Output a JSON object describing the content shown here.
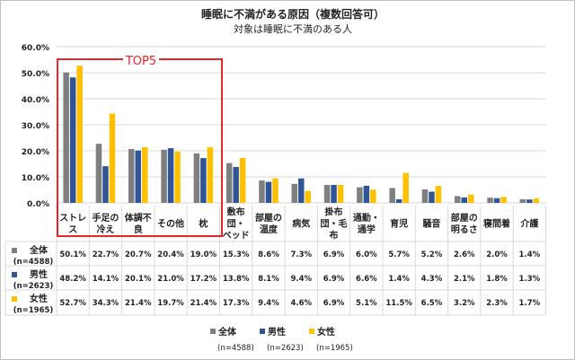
{
  "chart_data": {
    "type": "bar",
    "title": "睡眠に不満がある原因（複数回答可）",
    "subtitle": "対象は睡眠に不満のある人",
    "annotation": "TOP5",
    "ylim": [
      0,
      60
    ],
    "yticks": [
      "0.0%",
      "10.0%",
      "20.0%",
      "30.0%",
      "40.0%",
      "50.0%",
      "60.0%"
    ],
    "grid": true,
    "legend_position": "bottom",
    "categories": [
      [
        "ストレ",
        "ス"
      ],
      [
        "手足の",
        "冷え"
      ],
      [
        "体調不",
        "良"
      ],
      [
        "その他"
      ],
      [
        "枕"
      ],
      [
        "敷布",
        "団・",
        "ベッド"
      ],
      [
        "部屋の",
        "温度"
      ],
      [
        "病気"
      ],
      [
        "掛布",
        "団・毛",
        "布"
      ],
      [
        "通勤・",
        "通学"
      ],
      [
        "育児"
      ],
      [
        "騒音"
      ],
      [
        "部屋の",
        "明るさ"
      ],
      [
        "寝間着"
      ],
      [
        "介護"
      ]
    ],
    "series": [
      {
        "name": "全体",
        "n": "(n=4588)",
        "color": "#7f7f7f",
        "values": [
          50.1,
          22.7,
          20.7,
          20.4,
          19.0,
          15.3,
          8.6,
          7.3,
          6.9,
          6.0,
          5.7,
          5.2,
          2.6,
          2.0,
          1.4
        ]
      },
      {
        "name": "男性",
        "n": "(n=2623)",
        "color": "#2f5597",
        "values": [
          48.2,
          14.1,
          20.1,
          21.0,
          17.2,
          13.8,
          8.1,
          9.4,
          6.9,
          6.6,
          1.4,
          4.3,
          2.1,
          1.8,
          1.3
        ]
      },
      {
        "name": "女性",
        "n": "(n=1965)",
        "color": "#ffc000",
        "values": [
          52.7,
          34.3,
          21.4,
          19.7,
          21.4,
          17.3,
          9.4,
          4.6,
          6.9,
          5.1,
          11.5,
          6.5,
          3.2,
          2.3,
          1.7
        ]
      }
    ]
  }
}
